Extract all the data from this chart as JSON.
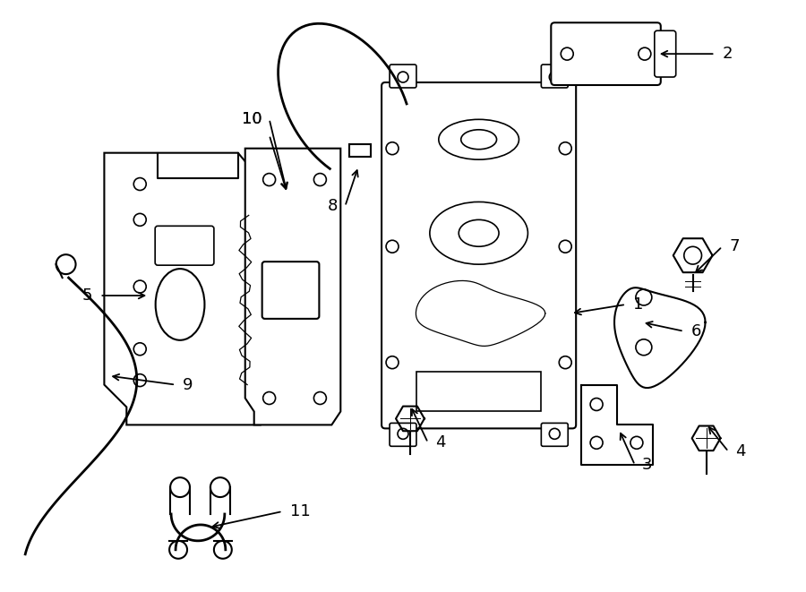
{
  "background_color": "#ffffff",
  "line_color": "#000000",
  "line_width": 1.5,
  "label_fontsize": 13
}
